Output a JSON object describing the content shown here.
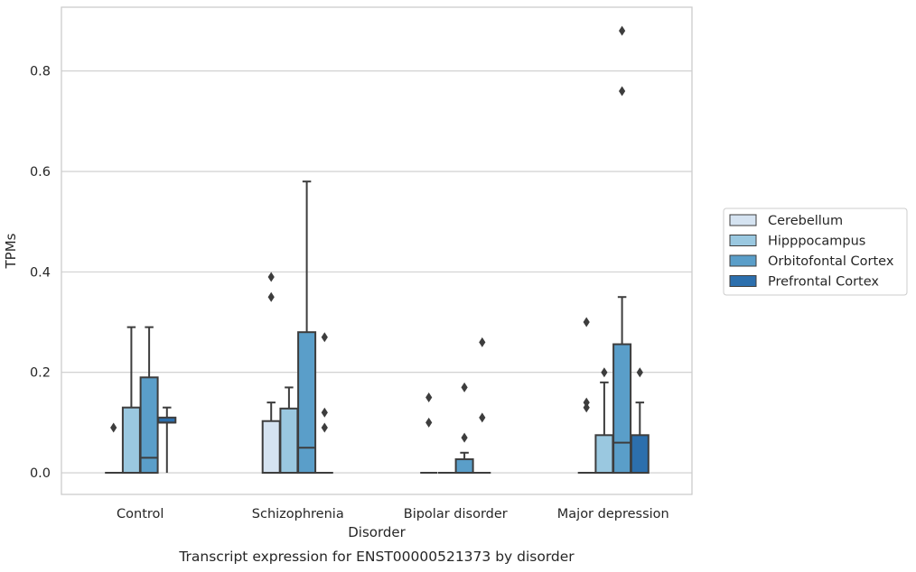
{
  "chart_data": {
    "type": "box",
    "caption": "Transcript expression for ENST00000521373 by disorder",
    "xlabel": "Disorder",
    "ylabel": "TPMs",
    "ylim": [
      -0.043,
      0.927
    ],
    "yticks": [
      "0.0",
      "0.2",
      "0.4",
      "0.6",
      "0.8"
    ],
    "ytick_values": [
      0.0,
      0.2,
      0.4,
      0.6,
      0.8
    ],
    "grid": true,
    "legend_position": "right",
    "categories": [
      "Control",
      "Schizophrenia",
      "Bipolar disorder",
      "Major depression"
    ],
    "series": [
      {
        "name": "Cerebellum",
        "color": "#d5e3f1",
        "boxes": [
          {
            "whislo": 0,
            "q1": 0,
            "med": 0,
            "q3": 0,
            "whishi": 0,
            "fliers": [
              0.09
            ]
          },
          {
            "whislo": 0,
            "q1": 0,
            "med": 0,
            "q3": 0.103,
            "whishi": 0.14,
            "fliers": [
              0.35,
              0.39
            ]
          },
          {
            "whislo": 0,
            "q1": 0,
            "med": 0,
            "q3": 0,
            "whishi": 0,
            "fliers": [
              0.1,
              0.15
            ]
          },
          {
            "whislo": 0,
            "q1": 0,
            "med": 0,
            "q3": 0,
            "whishi": 0,
            "fliers": [
              0.13,
              0.14,
              0.3
            ]
          }
        ]
      },
      {
        "name": "Hipppocampus",
        "color": "#9ac8e0",
        "boxes": [
          {
            "whislo": 0,
            "q1": 0,
            "med": 0,
            "q3": 0.13,
            "whishi": 0.29,
            "fliers": []
          },
          {
            "whislo": 0,
            "q1": 0,
            "med": 0,
            "q3": 0.128,
            "whishi": 0.17,
            "fliers": []
          },
          {
            "whislo": 0,
            "q1": 0,
            "med": 0,
            "q3": 0,
            "whishi": 0,
            "fliers": []
          },
          {
            "whislo": 0,
            "q1": 0,
            "med": 0,
            "q3": 0.075,
            "whishi": 0.18,
            "fliers": [
              0.2
            ]
          }
        ]
      },
      {
        "name": "Orbitofontal Cortex",
        "color": "#5a9ec9",
        "boxes": [
          {
            "whislo": 0,
            "q1": 0,
            "med": 0.03,
            "q3": 0.19,
            "whishi": 0.29,
            "fliers": []
          },
          {
            "whislo": 0,
            "q1": 0,
            "med": 0.05,
            "q3": 0.28,
            "whishi": 0.58,
            "fliers": []
          },
          {
            "whislo": 0,
            "q1": 0,
            "med": 0,
            "q3": 0.027,
            "whishi": 0.04,
            "fliers": [
              0.07,
              0.17
            ]
          },
          {
            "whislo": 0,
            "q1": 0,
            "med": 0.06,
            "q3": 0.256,
            "whishi": 0.35,
            "fliers": [
              0.76,
              0.88
            ]
          }
        ]
      },
      {
        "name": "Prefrontal Cortex",
        "color": "#2c6fad",
        "boxes": [
          {
            "whislo": 0,
            "q1": 0.1,
            "med": 0.1,
            "q3": 0.11,
            "whishi": 0.13,
            "fliers": []
          },
          {
            "whislo": 0,
            "q1": 0,
            "med": 0,
            "q3": 0,
            "whishi": 0,
            "fliers": [
              0.09,
              0.12,
              0.27
            ]
          },
          {
            "whislo": 0,
            "q1": 0,
            "med": 0,
            "q3": 0,
            "whishi": 0,
            "fliers": [
              0.11,
              0.26
            ]
          },
          {
            "whislo": 0,
            "q1": 0,
            "med": 0,
            "q3": 0.075,
            "whishi": 0.14,
            "fliers": [
              0.2
            ]
          }
        ]
      }
    ]
  }
}
